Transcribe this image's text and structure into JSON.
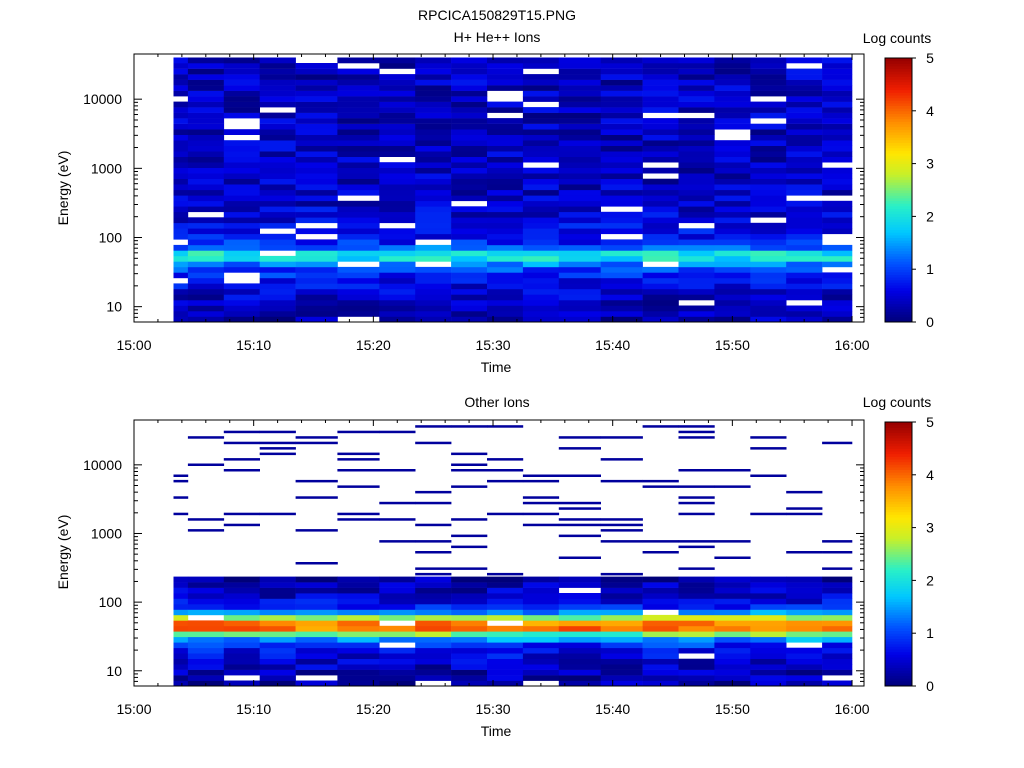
{
  "figure": {
    "title": "RPCICA150829T15.PNG"
  },
  "chart_data": [
    {
      "type": "heatmap",
      "title": "H+ He++ Ions",
      "xlabel": "Time",
      "ylabel": "Energy (eV)",
      "x_ticks": [
        "15:00",
        "15:10",
        "15:20",
        "15:30",
        "15:40",
        "15:50",
        "16:00"
      ],
      "xlim": [
        "15:00",
        "16:01"
      ],
      "y_scale": "log",
      "y_ticks": [
        "10",
        "100",
        "1000",
        "10000"
      ],
      "ylim": [
        6,
        45000
      ],
      "colorbar": {
        "label": "Log counts",
        "ticks": [
          "0",
          "1",
          "2",
          "3",
          "4",
          "5"
        ],
        "range": [
          0,
          5
        ],
        "colormap": "rainbow"
      },
      "time_bins": [
        "15:03",
        "15:06",
        "15:09",
        "15:12",
        "15:15",
        "15:19",
        "15:22",
        "15:25",
        "15:28",
        "15:31",
        "15:34",
        "15:37",
        "15:41",
        "15:44",
        "15:47",
        "15:50",
        "15:53",
        "15:56",
        "15:59"
      ],
      "data_start": "15:03",
      "data_end": "16:00",
      "energy_profile": [
        {
          "energy_eV": 8,
          "log_counts": 0.3
        },
        {
          "energy_eV": 12,
          "log_counts": 0.4
        },
        {
          "energy_eV": 17,
          "log_counts": 0.5
        },
        {
          "energy_eV": 24,
          "log_counts": 0.7
        },
        {
          "energy_eV": 30,
          "log_counts": 0.9
        },
        {
          "energy_eV": 38,
          "log_counts": 1.1
        },
        {
          "energy_eV": 45,
          "log_counts": 1.6
        },
        {
          "energy_eV": 55,
          "log_counts": 2.4
        },
        {
          "energy_eV": 65,
          "log_counts": 1.5
        },
        {
          "energy_eV": 80,
          "log_counts": 0.9
        },
        {
          "energy_eV": 120,
          "log_counts": 0.6
        },
        {
          "energy_eV": 500,
          "log_counts": 0.4
        },
        {
          "energy_eV": 5000,
          "log_counts": 0.4
        },
        {
          "energy_eV": 40000,
          "log_counts": 0.4
        }
      ]
    },
    {
      "type": "heatmap",
      "title": "Other Ions",
      "xlabel": "Time",
      "ylabel": "Energy (eV)",
      "x_ticks": [
        "15:00",
        "15:10",
        "15:20",
        "15:30",
        "15:40",
        "15:50",
        "16:00"
      ],
      "xlim": [
        "15:00",
        "16:01"
      ],
      "y_scale": "log",
      "y_ticks": [
        "10",
        "100",
        "1000",
        "10000"
      ],
      "ylim": [
        6,
        45000
      ],
      "colorbar": {
        "label": "Log counts",
        "ticks": [
          "0",
          "1",
          "2",
          "3",
          "4",
          "5"
        ],
        "range": [
          0,
          5
        ],
        "colormap": "rainbow"
      },
      "time_bins": [
        "15:03",
        "15:06",
        "15:09",
        "15:12",
        "15:15",
        "15:19",
        "15:22",
        "15:25",
        "15:28",
        "15:31",
        "15:34",
        "15:37",
        "15:41",
        "15:44",
        "15:47",
        "15:50",
        "15:53",
        "15:56",
        "15:59"
      ],
      "data_start": "15:03",
      "data_end": "16:00",
      "energy_profile": [
        {
          "energy_eV": 8,
          "log_counts": 0.3
        },
        {
          "energy_eV": 12,
          "log_counts": 0.4
        },
        {
          "energy_eV": 18,
          "log_counts": 0.6
        },
        {
          "energy_eV": 24,
          "log_counts": 0.9
        },
        {
          "energy_eV": 30,
          "log_counts": 1.6
        },
        {
          "energy_eV": 35,
          "log_counts": 2.6
        },
        {
          "energy_eV": 40,
          "log_counts": 3.8
        },
        {
          "energy_eV": 46,
          "log_counts": 4.2
        },
        {
          "energy_eV": 53,
          "log_counts": 3.5
        },
        {
          "energy_eV": 62,
          "log_counts": 2.3
        },
        {
          "energy_eV": 72,
          "log_counts": 1.4
        },
        {
          "energy_eV": 85,
          "log_counts": 0.8
        },
        {
          "energy_eV": 110,
          "log_counts": 0.5
        },
        {
          "energy_eV": 180,
          "log_counts": 0.3
        },
        {
          "energy_eV": 250,
          "log_counts": 0.2
        }
      ],
      "sparse_streaks_above_eV": 250,
      "sparse_streak_log_counts": 0.2
    }
  ]
}
